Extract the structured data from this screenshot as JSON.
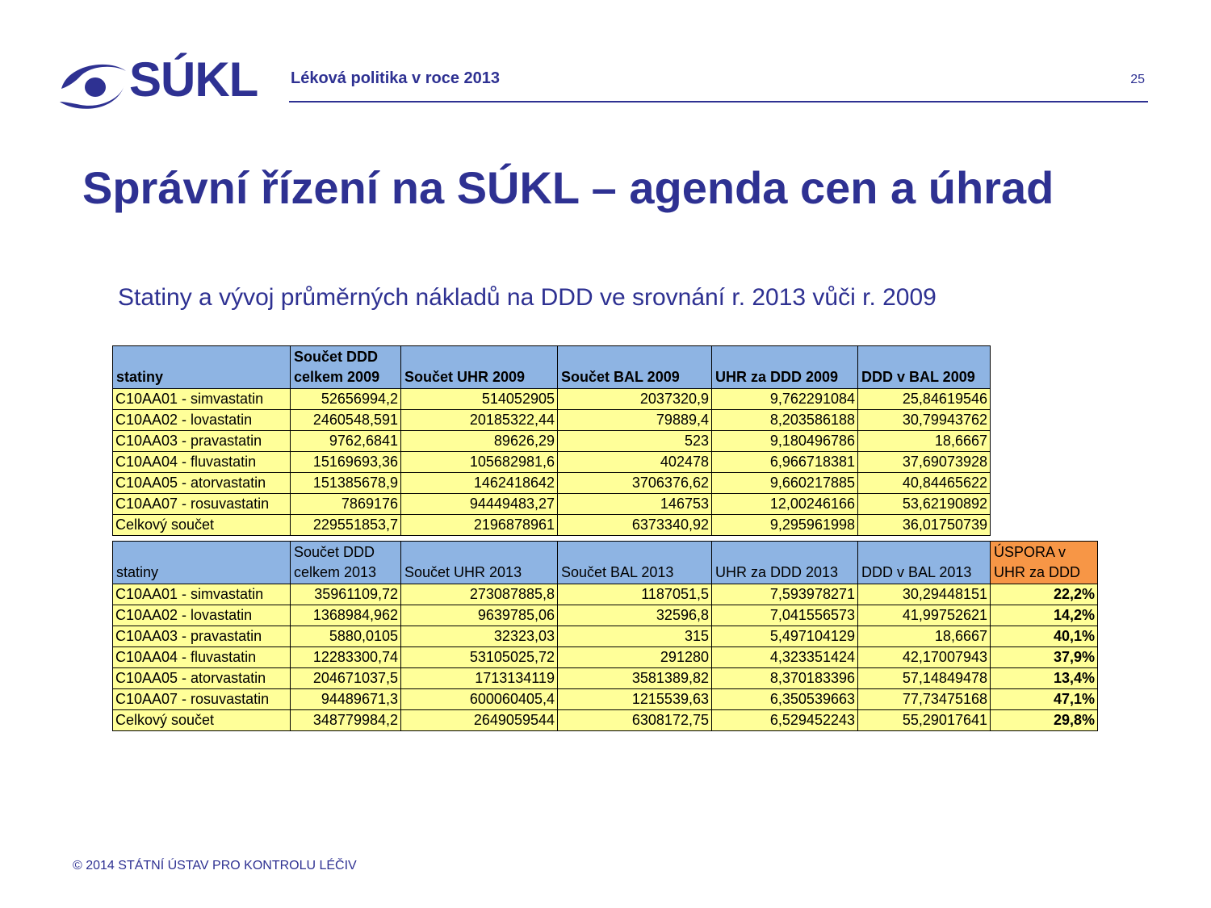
{
  "header": {
    "logo_text": "SÚKL",
    "title": "Léková politika v roce 2013",
    "page_number": "25"
  },
  "main": {
    "title": "Správní řízení na SÚKL – agenda cen a úhrad",
    "subtitle": "Statiny a vývoj průměrných nákladů na DDD ve srovnání r. 2013 vůči r. 2009"
  },
  "table2009": {
    "headers": [
      "statiny",
      "Součet DDD celkem 2009",
      "Součet UHR 2009",
      "Součet BAL 2009",
      "UHR za DDD 2009",
      "DDD v BAL 2009"
    ],
    "rows": [
      [
        "C10AA01 - simvastatin",
        "52656994,2",
        "514052905",
        "2037320,9",
        "9,762291084",
        "25,84619546"
      ],
      [
        "C10AA02 - lovastatin",
        "2460548,591",
        "20185322,44",
        "79889,4",
        "8,203586188",
        "30,79943762"
      ],
      [
        "C10AA03 - pravastatin",
        "9762,6841",
        "89626,29",
        "523",
        "9,180496786",
        "18,6667"
      ],
      [
        "C10AA04 - fluvastatin",
        "15169693,36",
        "105682981,6",
        "402478",
        "6,966718381",
        "37,69073928"
      ],
      [
        "C10AA05 - atorvastatin",
        "151385678,9",
        "1462418642",
        "3706376,62",
        "9,660217885",
        "40,84465622"
      ],
      [
        "C10AA07 - rosuvastatin",
        "7869176",
        "94449483,27",
        "146753",
        "12,00246166",
        "53,62190892"
      ],
      [
        "Celkový součet",
        "229551853,7",
        "2196878961",
        "6373340,92",
        "9,295961998",
        "36,01750739"
      ]
    ]
  },
  "table2013": {
    "headers": [
      "statiny",
      "Součet DDD celkem 2013",
      "Součet UHR 2013",
      "Součet BAL 2013",
      "UHR za DDD 2013",
      "DDD v BAL 2013",
      "ÚSPORA v UHR za DDD"
    ],
    "rows": [
      [
        "C10AA01 - simvastatin",
        "35961109,72",
        "273087885,8",
        "1187051,5",
        "7,593978271",
        "30,29448151",
        "22,2%"
      ],
      [
        "C10AA02 - lovastatin",
        "1368984,962",
        "9639785,06",
        "32596,8",
        "7,041556573",
        "41,99752621",
        "14,2%"
      ],
      [
        "C10AA03 - pravastatin",
        "5880,0105",
        "32323,03",
        "315",
        "5,497104129",
        "18,6667",
        "40,1%"
      ],
      [
        "C10AA04 - fluvastatin",
        "12283300,74",
        "53105025,72",
        "291280",
        "4,323351424",
        "42,17007943",
        "37,9%"
      ],
      [
        "C10AA05 - atorvastatin",
        "204671037,5",
        "1713134119",
        "3581389,82",
        "8,370183396",
        "57,14849478",
        "13,4%"
      ],
      [
        "C10AA07 - rosuvastatin",
        "94489671,3",
        "600060405,4",
        "1215539,63",
        "6,350539663",
        "77,73475168",
        "47,1%"
      ],
      [
        "Celkový součet",
        "348779984,2",
        "2649059544",
        "6308172,75",
        "6,529452243",
        "55,29017641",
        "29,8%"
      ]
    ]
  },
  "footer": {
    "copyright": "© 2014  STÁTNÍ ÚSTAV PRO KONTROLU LÉČIV"
  },
  "colors": {
    "brand": "#2e3192",
    "header_fill": "#8eb4e3",
    "cell_fill": "#ffff99",
    "savings_header_fill": "#f79646"
  }
}
